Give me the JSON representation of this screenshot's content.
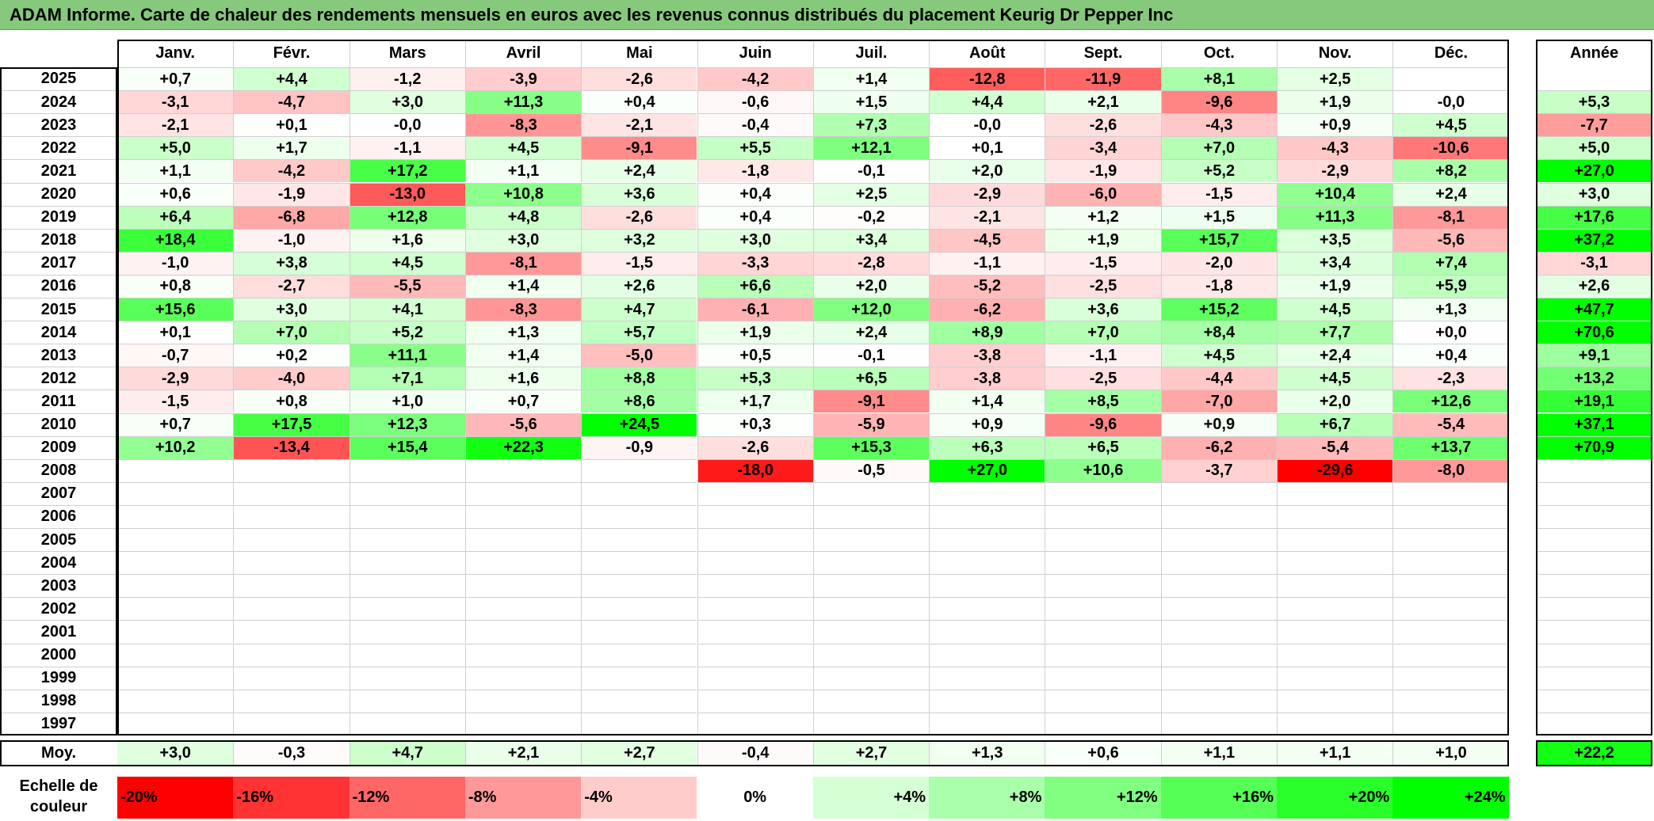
{
  "title": "ADAM Informe. Carte de chaleur des rendements mensuels en euros avec les revenus connus distribués du placement Keurig Dr Pepper Inc",
  "chart_data": {
    "type": "heatmap",
    "months": [
      "Janv.",
      "Févr.",
      "Mars",
      "Avril",
      "Mai",
      "Juin",
      "Juil.",
      "Août",
      "Sept.",
      "Oct.",
      "Nov.",
      "Déc."
    ],
    "year_header": "Année",
    "rows": [
      {
        "year": "2025",
        "values": [
          "+0,7",
          "+4,4",
          "-1,2",
          "-3,9",
          "-2,6",
          "-4,2",
          "+1,4",
          "-12,8",
          "-11,9",
          "+8,1",
          "+2,5",
          ""
        ],
        "annual": ""
      },
      {
        "year": "2024",
        "values": [
          "-3,1",
          "-4,7",
          "+3,0",
          "+11,3",
          "+0,4",
          "-0,6",
          "+1,5",
          "+4,4",
          "+2,1",
          "-9,6",
          "+1,9",
          "-0,0"
        ],
        "annual": "+5,3"
      },
      {
        "year": "2023",
        "values": [
          "-2,1",
          "+0,1",
          "-0,0",
          "-8,3",
          "-2,1",
          "-0,4",
          "+7,3",
          "-0,0",
          "-2,6",
          "-4,3",
          "+0,9",
          "+4,5"
        ],
        "annual": "-7,7"
      },
      {
        "year": "2022",
        "values": [
          "+5,0",
          "+1,7",
          "-1,1",
          "+4,5",
          "-9,1",
          "+5,5",
          "+12,1",
          "+0,1",
          "-3,4",
          "+7,0",
          "-4,3",
          "-10,6"
        ],
        "annual": "+5,0"
      },
      {
        "year": "2021",
        "values": [
          "+1,1",
          "-4,2",
          "+17,2",
          "+1,1",
          "+2,4",
          "-1,8",
          "-0,1",
          "+2,0",
          "-1,9",
          "+5,2",
          "-2,9",
          "+8,2"
        ],
        "annual": "+27,0"
      },
      {
        "year": "2020",
        "values": [
          "+0,6",
          "-1,9",
          "-13,0",
          "+10,8",
          "+3,6",
          "+0,4",
          "+2,5",
          "-2,9",
          "-6,0",
          "-1,5",
          "+10,4",
          "+2,4"
        ],
        "annual": "+3,0"
      },
      {
        "year": "2019",
        "values": [
          "+6,4",
          "-6,8",
          "+12,8",
          "+4,8",
          "-2,6",
          "+0,4",
          "-0,2",
          "-2,1",
          "+1,2",
          "+1,5",
          "+11,3",
          "-8,1"
        ],
        "annual": "+17,6"
      },
      {
        "year": "2018",
        "values": [
          "+18,4",
          "-1,0",
          "+1,6",
          "+3,0",
          "+3,2",
          "+3,0",
          "+3,4",
          "-4,5",
          "+1,9",
          "+15,7",
          "+3,5",
          "-5,6"
        ],
        "annual": "+37,2"
      },
      {
        "year": "2017",
        "values": [
          "-1,0",
          "+3,8",
          "+4,5",
          "-8,1",
          "-1,5",
          "-3,3",
          "-2,8",
          "-1,1",
          "-1,5",
          "-2,0",
          "+3,4",
          "+7,4"
        ],
        "annual": "-3,1"
      },
      {
        "year": "2016",
        "values": [
          "+0,8",
          "-2,7",
          "-5,5",
          "+1,4",
          "+2,6",
          "+6,6",
          "+2,0",
          "-5,2",
          "-2,5",
          "-1,8",
          "+1,9",
          "+5,9"
        ],
        "annual": "+2,6"
      },
      {
        "year": "2015",
        "values": [
          "+15,6",
          "+3,0",
          "+4,1",
          "-8,3",
          "+4,7",
          "-6,1",
          "+12,0",
          "-6,2",
          "+3,6",
          "+15,2",
          "+4,5",
          "+1,3"
        ],
        "annual": "+47,7"
      },
      {
        "year": "2014",
        "values": [
          "+0,1",
          "+7,0",
          "+5,2",
          "+1,3",
          "+5,7",
          "+1,9",
          "+2,4",
          "+8,9",
          "+7,0",
          "+8,4",
          "+7,7",
          "+0,0"
        ],
        "annual": "+70,6"
      },
      {
        "year": "2013",
        "values": [
          "-0,7",
          "+0,2",
          "+11,1",
          "+1,4",
          "-5,0",
          "+0,5",
          "-0,1",
          "-3,8",
          "-1,1",
          "+4,5",
          "+2,4",
          "+0,4"
        ],
        "annual": "+9,1"
      },
      {
        "year": "2012",
        "values": [
          "-2,9",
          "-4,0",
          "+7,1",
          "+1,6",
          "+8,8",
          "+5,3",
          "+6,5",
          "-3,8",
          "-2,5",
          "-4,4",
          "+4,5",
          "-2,3"
        ],
        "annual": "+13,2"
      },
      {
        "year": "2011",
        "values": [
          "-1,5",
          "+0,8",
          "+1,0",
          "+0,7",
          "+8,6",
          "+1,7",
          "-9,1",
          "+1,4",
          "+8,5",
          "-7,0",
          "+2,0",
          "+12,6"
        ],
        "annual": "+19,1"
      },
      {
        "year": "2010",
        "values": [
          "+0,7",
          "+17,5",
          "+12,3",
          "-5,6",
          "+24,5",
          "+0,3",
          "-5,9",
          "+0,9",
          "-9,6",
          "+0,9",
          "+6,7",
          "-5,4"
        ],
        "annual": "+37,1"
      },
      {
        "year": "2009",
        "values": [
          "+10,2",
          "-13,4",
          "+15,4",
          "+22,3",
          "-0,9",
          "-2,6",
          "+15,3",
          "+6,3",
          "+6,5",
          "-6,2",
          "-5,4",
          "+13,7"
        ],
        "annual": "+70,9"
      },
      {
        "year": "2008",
        "values": [
          "",
          "",
          "",
          "",
          "",
          "-18,0",
          "-0,5",
          "+27,0",
          "+10,6",
          "-3,7",
          "-29,6",
          "-8,0"
        ],
        "annual": ""
      },
      {
        "year": "2007",
        "values": [
          "",
          "",
          "",
          "",
          "",
          "",
          "",
          "",
          "",
          "",
          "",
          ""
        ],
        "annual": ""
      },
      {
        "year": "2006",
        "values": [
          "",
          "",
          "",
          "",
          "",
          "",
          "",
          "",
          "",
          "",
          "",
          ""
        ],
        "annual": ""
      },
      {
        "year": "2005",
        "values": [
          "",
          "",
          "",
          "",
          "",
          "",
          "",
          "",
          "",
          "",
          "",
          ""
        ],
        "annual": ""
      },
      {
        "year": "2004",
        "values": [
          "",
          "",
          "",
          "",
          "",
          "",
          "",
          "",
          "",
          "",
          "",
          ""
        ],
        "annual": ""
      },
      {
        "year": "2003",
        "values": [
          "",
          "",
          "",
          "",
          "",
          "",
          "",
          "",
          "",
          "",
          "",
          ""
        ],
        "annual": ""
      },
      {
        "year": "2002",
        "values": [
          "",
          "",
          "",
          "",
          "",
          "",
          "",
          "",
          "",
          "",
          "",
          ""
        ],
        "annual": ""
      },
      {
        "year": "2001",
        "values": [
          "",
          "",
          "",
          "",
          "",
          "",
          "",
          "",
          "",
          "",
          "",
          ""
        ],
        "annual": ""
      },
      {
        "year": "2000",
        "values": [
          "",
          "",
          "",
          "",
          "",
          "",
          "",
          "",
          "",
          "",
          "",
          ""
        ],
        "annual": ""
      },
      {
        "year": "1999",
        "values": [
          "",
          "",
          "",
          "",
          "",
          "",
          "",
          "",
          "",
          "",
          "",
          ""
        ],
        "annual": ""
      },
      {
        "year": "1998",
        "values": [
          "",
          "",
          "",
          "",
          "",
          "",
          "",
          "",
          "",
          "",
          "",
          ""
        ],
        "annual": ""
      },
      {
        "year": "1997",
        "values": [
          "",
          "",
          "",
          "",
          "",
          "",
          "",
          "",
          "",
          "",
          "",
          ""
        ],
        "annual": ""
      }
    ],
    "average": {
      "label": "Moy.",
      "values": [
        "+3,0",
        "-0,3",
        "+4,7",
        "+2,1",
        "+2,7",
        "-0,4",
        "+2,7",
        "+1,3",
        "+0,6",
        "+1,1",
        "+1,1",
        "+1,0"
      ],
      "annual": "+22,2"
    },
    "scale": {
      "label_line1": "Echelle de",
      "label_line2": "couleur",
      "steps": [
        "-20%",
        "-16%",
        "-12%",
        "-8%",
        "-4%",
        "0%",
        "+4%",
        "+8%",
        "+12%",
        "+16%",
        "+20%",
        "+24%"
      ],
      "step_values": [
        -20,
        -16,
        -12,
        -8,
        -4,
        0,
        4,
        8,
        12,
        16,
        20,
        24
      ]
    },
    "colors": {
      "negative_max": "#ff0000",
      "positive_max": "#00ff00",
      "zero": "#ffffff"
    }
  }
}
